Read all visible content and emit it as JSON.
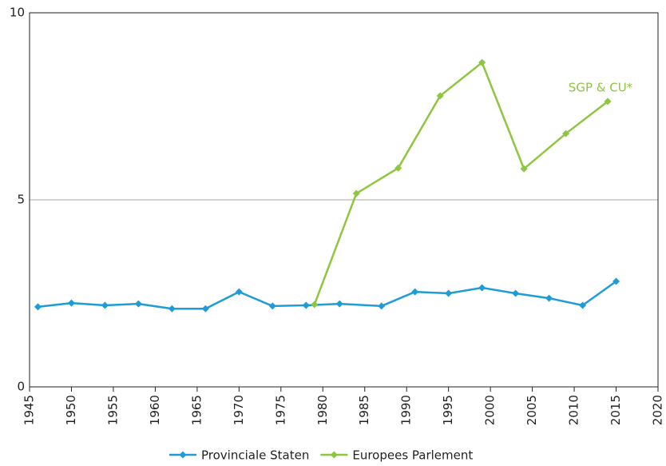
{
  "chart_data": {
    "type": "line",
    "xlim": [
      1945,
      2020
    ],
    "xticks": [
      1945,
      1950,
      1955,
      1960,
      1965,
      1970,
      1975,
      1980,
      1985,
      1990,
      1995,
      2000,
      2005,
      2010,
      2015,
      2020
    ],
    "ylim": [
      0,
      10
    ],
    "yticks": [
      0,
      5,
      10
    ],
    "grid": true,
    "legend": "bottom",
    "annotation": "SGP &  CU*",
    "series": [
      {
        "name": "Provinciale Staten",
        "color": "#1e9cd7",
        "x": [
          1946,
          1950,
          1954,
          1958,
          1962,
          1966,
          1970,
          1974,
          1978,
          1982,
          1987,
          1991,
          1995,
          1999,
          2003,
          2007,
          2011,
          2015
        ],
        "values": [
          2.14,
          2.24,
          2.18,
          2.22,
          2.09,
          2.09,
          2.54,
          2.16,
          2.18,
          2.22,
          2.16,
          2.54,
          2.5,
          2.65,
          2.5,
          2.37,
          2.18,
          2.82
        ]
      },
      {
        "name": "Europees Parlement",
        "color": "#8dc63f",
        "x": [
          1979,
          1984,
          1989,
          1994,
          1999,
          2004,
          2009,
          2014
        ],
        "values": [
          2.2,
          5.17,
          5.85,
          7.78,
          8.67,
          5.83,
          6.77,
          7.63
        ]
      }
    ]
  }
}
